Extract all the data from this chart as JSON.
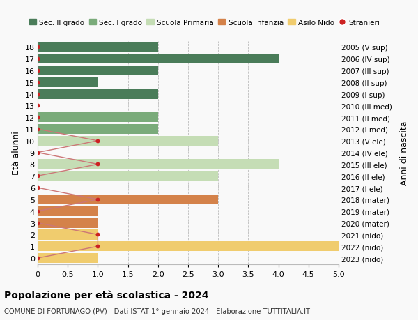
{
  "ages": [
    18,
    17,
    16,
    15,
    14,
    13,
    12,
    11,
    10,
    9,
    8,
    7,
    6,
    5,
    4,
    3,
    2,
    1,
    0
  ],
  "right_labels": [
    "2005 (V sup)",
    "2006 (IV sup)",
    "2007 (III sup)",
    "2008 (II sup)",
    "2009 (I sup)",
    "2010 (III med)",
    "2011 (II med)",
    "2012 (I med)",
    "2013 (V ele)",
    "2014 (IV ele)",
    "2015 (III ele)",
    "2016 (II ele)",
    "2017 (I ele)",
    "2018 (mater)",
    "2019 (mater)",
    "2020 (mater)",
    "2021 (nido)",
    "2022 (nido)",
    "2023 (nido)"
  ],
  "bars": [
    {
      "age": 18,
      "value": 2.0,
      "color": "#4a7c59"
    },
    {
      "age": 17,
      "value": 4.0,
      "color": "#4a7c59"
    },
    {
      "age": 16,
      "value": 2.0,
      "color": "#4a7c59"
    },
    {
      "age": 15,
      "value": 1.0,
      "color": "#4a7c59"
    },
    {
      "age": 14,
      "value": 2.0,
      "color": "#4a7c59"
    },
    {
      "age": 13,
      "value": 0.0,
      "color": "#4a7c59"
    },
    {
      "age": 12,
      "value": 2.0,
      "color": "#7aab7a"
    },
    {
      "age": 11,
      "value": 2.0,
      "color": "#7aab7a"
    },
    {
      "age": 10,
      "value": 3.0,
      "color": "#c5ddb5"
    },
    {
      "age": 9,
      "value": 0.0,
      "color": "#c5ddb5"
    },
    {
      "age": 8,
      "value": 4.0,
      "color": "#c5ddb5"
    },
    {
      "age": 7,
      "value": 3.0,
      "color": "#c5ddb5"
    },
    {
      "age": 6,
      "value": 0.0,
      "color": "#c5ddb5"
    },
    {
      "age": 5,
      "value": 3.0,
      "color": "#d4824a"
    },
    {
      "age": 4,
      "value": 1.0,
      "color": "#d4824a"
    },
    {
      "age": 3,
      "value": 1.0,
      "color": "#d4824a"
    },
    {
      "age": 2,
      "value": 1.0,
      "color": "#f0cc6e"
    },
    {
      "age": 1,
      "value": 5.0,
      "color": "#f0cc6e"
    },
    {
      "age": 0,
      "value": 1.0,
      "color": "#f0cc6e"
    }
  ],
  "legend_items": [
    {
      "label": "Sec. II grado",
      "color": "#4a7c59",
      "type": "patch"
    },
    {
      "label": "Sec. I grado",
      "color": "#7aab7a",
      "type": "patch"
    },
    {
      "label": "Scuola Primaria",
      "color": "#c5ddb5",
      "type": "patch"
    },
    {
      "label": "Scuola Infanzia",
      "color": "#d4824a",
      "type": "patch"
    },
    {
      "label": "Asilo Nido",
      "color": "#f0cc6e",
      "type": "patch"
    },
    {
      "label": "Stranieri",
      "color": "#cc2222",
      "type": "dot"
    }
  ],
  "xlim": [
    0,
    5.0
  ],
  "xticks": [
    0,
    0.5,
    1.0,
    1.5,
    2.0,
    2.5,
    3.0,
    3.5,
    4.0,
    4.5,
    5.0
  ],
  "xtick_labels": [
    "0",
    "0.5",
    "1.0",
    "1.5",
    "2.0",
    "2.5",
    "3.0",
    "3.5",
    "4.0",
    "4.5",
    "5.0"
  ],
  "ylabel_left": "Età alunni",
  "ylabel_right": "Anni di nascita",
  "title": "Popolazione per età scolastica - 2024",
  "subtitle": "COMUNE DI FORTUNAGO (PV) - Dati ISTAT 1° gennaio 2024 - Elaborazione TUTTITALIA.IT",
  "bg_color": "#f9f9f9",
  "grid_color": "#bbbbbb",
  "stranieri_color": "#cc2222",
  "stranieri_line_color": "#cc7777",
  "stranieri_x": [
    0,
    0,
    0,
    0,
    0,
    0,
    0,
    0,
    1,
    0,
    1,
    0,
    0,
    1,
    0,
    0,
    1,
    1,
    0
  ]
}
